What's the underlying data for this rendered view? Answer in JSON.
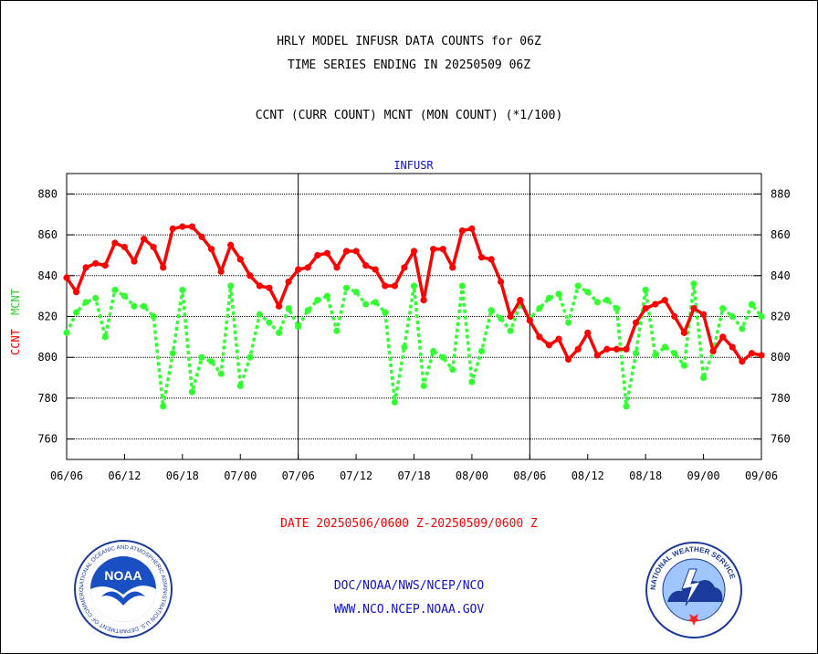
{
  "header": {
    "title_line1": "HRLY MODEL INFUSR DATA COUNTS for 06Z",
    "title_line2": "TIME SERIES ENDING IN 20250509 06Z",
    "subtitle": "CCNT (CURR COUNT) MCNT (MON COUNT) (*1/100)"
  },
  "chart_data": {
    "type": "line",
    "panel_title": "INFUSR",
    "ylabel_left_ccnt": "CCNT",
    "ylabel_left_mcnt": "MCNT",
    "ylim": [
      750,
      890
    ],
    "yticks": [
      760,
      780,
      800,
      820,
      840,
      860,
      880
    ],
    "xticks": [
      "06/06",
      "06/12",
      "06/18",
      "07/00",
      "07/06",
      "07/12",
      "07/18",
      "08/00",
      "08/06",
      "08/12",
      "08/18",
      "09/00",
      "09/06"
    ],
    "grid": true,
    "series": [
      {
        "name": "CCNT",
        "color": "#ff0000",
        "values": [
          839,
          832,
          844,
          846,
          845,
          856,
          854,
          847,
          858,
          854,
          844,
          863,
          864,
          864,
          859,
          853,
          842,
          855,
          848,
          840,
          835,
          834,
          825,
          837,
          843,
          844,
          850,
          851,
          844,
          852,
          852,
          845,
          843,
          835,
          835,
          844,
          852,
          828,
          853,
          853,
          844,
          862,
          863,
          849,
          848,
          837,
          820,
          828,
          818,
          810,
          806,
          809,
          799,
          804,
          812,
          801,
          804,
          804,
          804,
          817,
          824,
          826,
          828,
          820,
          812,
          824,
          821,
          803,
          810,
          805,
          798,
          802,
          801
        ]
      },
      {
        "name": "MCNT",
        "color": "#33ff33",
        "values": [
          812,
          822,
          827,
          829,
          810,
          833,
          830,
          825,
          825,
          820,
          776,
          802,
          833,
          783,
          800,
          798,
          792,
          835,
          786,
          800,
          821,
          817,
          812,
          824,
          815,
          823,
          828,
          830,
          813,
          834,
          832,
          826,
          827,
          822,
          778,
          805,
          835,
          786,
          803,
          800,
          794,
          835,
          788,
          803,
          823,
          819,
          813,
          826,
          819,
          824,
          829,
          831,
          817,
          835,
          832,
          827,
          828,
          824,
          776,
          802,
          833,
          801,
          805,
          802,
          796,
          836,
          790,
          803,
          824,
          820,
          814,
          826,
          820
        ]
      }
    ]
  },
  "footer": {
    "date_range": "DATE 20250506/0600 Z-20250509/0600 Z",
    "org_line": "DOC/NOAA/NWS/NCEP/NCO",
    "url_line": "WWW.NCO.NCEP.NOAA.GOV",
    "noaa_logo_text": "NOAA",
    "noaa_ring_text": "NATIONAL OCEANIC AND ATMOSPHERIC ADMINISTRATION U.S. DEPARTMENT OF COMMERCE",
    "nws_ring_text": "NATIONAL WEATHER SERVICE"
  }
}
